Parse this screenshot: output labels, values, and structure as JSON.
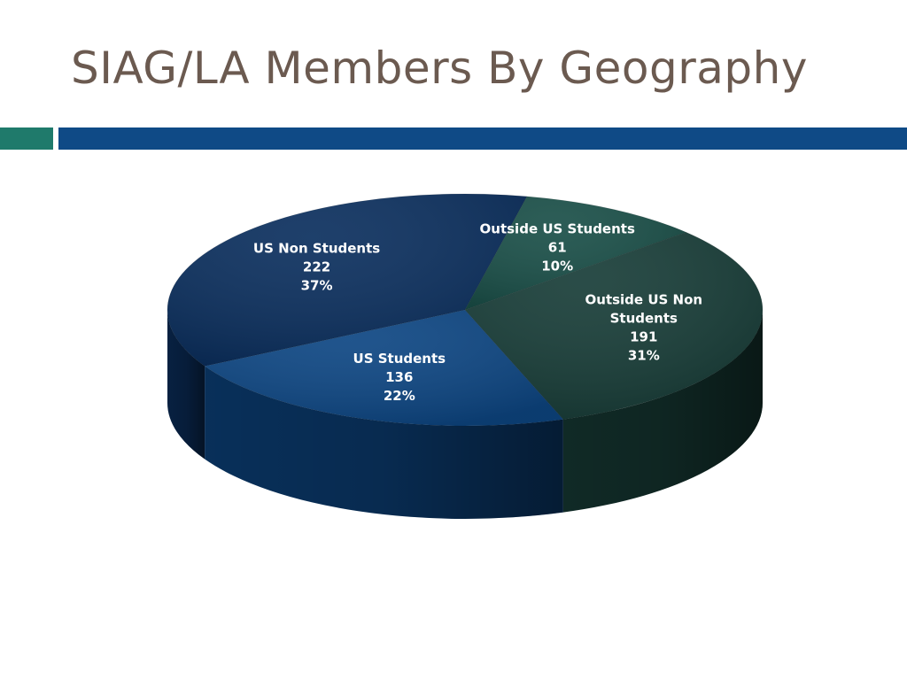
{
  "slide": {
    "title": "SIAG/LA Members By Geography"
  },
  "colors": {
    "title": "#6b5a50",
    "accent_bar_left": "#1f7a6b",
    "accent_bar_right": "#0f4a86"
  },
  "chart_data": {
    "type": "pie",
    "title": "",
    "style": "3d",
    "slices": [
      {
        "label": "US Non Students",
        "label_lines": [
          "US Non Students"
        ],
        "value": 222,
        "percent": "37%",
        "color": "#0b2f5e"
      },
      {
        "label": "Outside US Students",
        "label_lines": [
          "Outside US Students"
        ],
        "value": 61,
        "percent": "10%",
        "color": "#1a4f48"
      },
      {
        "label": "Outside US Non Students",
        "label_lines": [
          "Outside US Non",
          "Students"
        ],
        "value": 191,
        "percent": "31%",
        "color": "#183d38"
      },
      {
        "label": "US Students",
        "label_lines": [
          "US Students"
        ],
        "value": 136,
        "percent": "22%",
        "color": "#0d4683"
      }
    ]
  }
}
